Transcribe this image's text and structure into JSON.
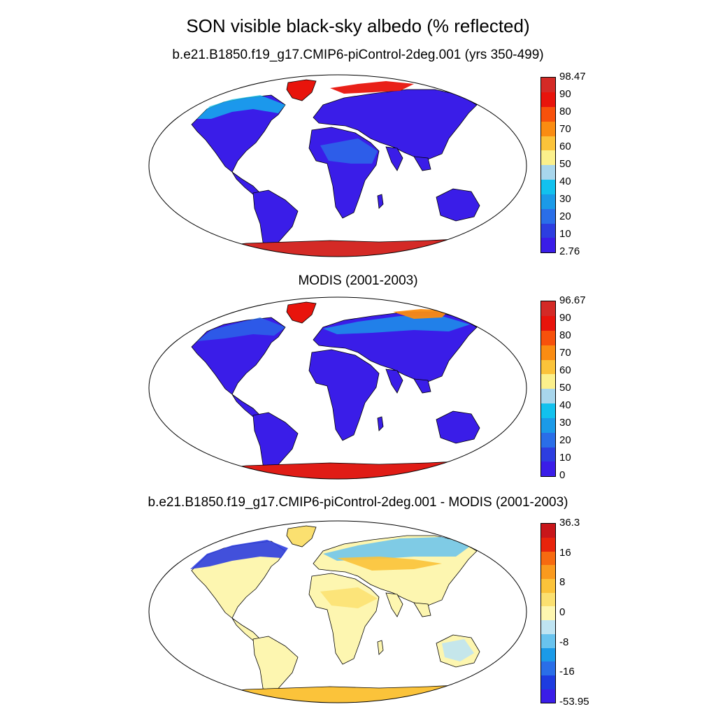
{
  "title": "SON visible black-sky albedo (% reflected)",
  "panels": [
    {
      "subtitle": "b.e21.B1850.f19_g17.CMIP6-piControl-2deg.001 (yrs 350-499)",
      "variant": "model",
      "colorbar": {
        "colors": [
          "#3a1de8",
          "#2d3ee0",
          "#2a6ee8",
          "#1b9ae8",
          "#12c1ee",
          "#a8d6ec",
          "#fbf08c",
          "#fbc33a",
          "#fa8c12",
          "#f7510c",
          "#e8140c",
          "#d42a26"
        ],
        "labels": [
          "2.76",
          "10",
          "20",
          "30",
          "40",
          "50",
          "60",
          "70",
          "80",
          "90",
          "98.47"
        ]
      }
    },
    {
      "subtitle": "MODIS (2001-2003)",
      "variant": "obs",
      "colorbar": {
        "colors": [
          "#3a1de8",
          "#2d3ee0",
          "#2a6ee8",
          "#1b9ae8",
          "#12c1ee",
          "#a8d6ec",
          "#fbf08c",
          "#fbc33a",
          "#fa8c12",
          "#f7510c",
          "#e8140c",
          "#d42a26"
        ],
        "labels": [
          "0",
          "10",
          "20",
          "30",
          "40",
          "50",
          "60",
          "70",
          "80",
          "90",
          "96.67"
        ]
      }
    },
    {
      "subtitle": "b.e21.B1850.f19_g17.CMIP6-piControl-2deg.001 - MODIS (2001-2003)",
      "variant": "diff",
      "colorbar": {
        "colors": [
          "#3a1de8",
          "#1e3ce0",
          "#2a6ee8",
          "#1b9ae8",
          "#69c3ee",
          "#bfe4f2",
          "#fdf6b0",
          "#fbe070",
          "#fbc33a",
          "#fa9a1e",
          "#f76a10",
          "#e8240c",
          "#c8161a"
        ],
        "labels": [
          "-53.95",
          "",
          "-16",
          "",
          "-8",
          "",
          "0",
          "",
          "8",
          "",
          "16",
          "",
          "36.3"
        ]
      }
    }
  ],
  "colors": {
    "antarctica_model": "#d42a26",
    "antarctica_obs": "#e01c16",
    "greenland": "#e8140c",
    "land_model": "#3a1de8",
    "land_obs": "#3a1de8",
    "diff_land": "#fdf6b0",
    "coast": "#000000"
  }
}
